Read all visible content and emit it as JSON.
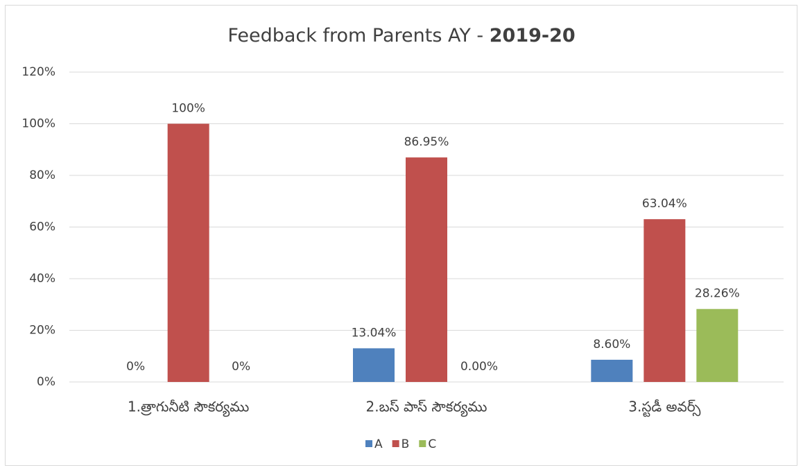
{
  "chart_data": {
    "type": "bar",
    "title": {
      "text": "Feedback from Parents AY - ",
      "bold": "2019-20"
    },
    "categories": [
      "1.త్రాగునీటి సౌకర్యము",
      "2.బస్ పాస్ సౌకర్యము",
      "3.స్టడీ అవర్స్"
    ],
    "series": [
      {
        "name": "A",
        "color": "#4f81bd",
        "values": [
          0,
          13.04,
          8.6
        ],
        "value_labels": [
          "0%",
          "13.04%",
          "8.60%"
        ]
      },
      {
        "name": "B",
        "color": "#c0504d",
        "values": [
          100,
          86.95,
          63.04
        ],
        "value_labels": [
          "100%",
          "86.95%",
          "63.04%"
        ]
      },
      {
        "name": "C",
        "color": "#9bbb59",
        "values": [
          0,
          0.0,
          28.26
        ],
        "value_labels": [
          "0%",
          "0.00%",
          "28.26%"
        ]
      }
    ],
    "ylim": [
      0,
      120
    ],
    "yticks": [
      {
        "value": 0,
        "label": "0%"
      },
      {
        "value": 20,
        "label": "20%"
      },
      {
        "value": 40,
        "label": "40%"
      },
      {
        "value": 60,
        "label": "60%"
      },
      {
        "value": 80,
        "label": "80%"
      },
      {
        "value": 100,
        "label": "100%"
      },
      {
        "value": 120,
        "label": "120%"
      }
    ],
    "grid": true,
    "legend": "bottom"
  }
}
